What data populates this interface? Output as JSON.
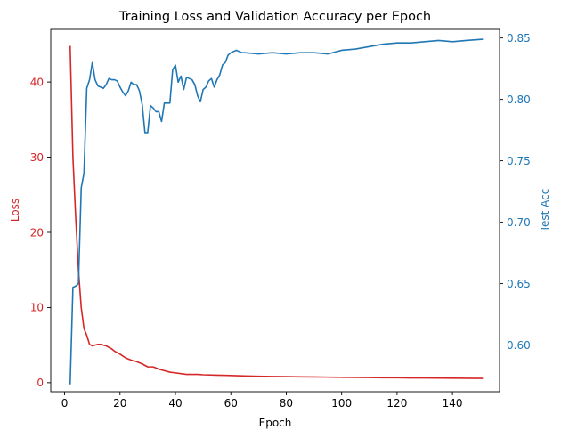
{
  "chart_data": {
    "type": "line",
    "title": "Training Loss and Validation Accuracy per Epoch",
    "xlabel": "Epoch",
    "xlim": [
      -5,
      157
    ],
    "xticks": [
      0,
      20,
      40,
      60,
      80,
      100,
      120,
      140
    ],
    "grid": false,
    "y_left": {
      "label": "Loss",
      "color": "#d62728",
      "ylim": [
        -1.2,
        47
      ],
      "ticks": [
        0,
        10,
        20,
        30,
        40
      ]
    },
    "y_right": {
      "label": "Test Acc",
      "color": "#1f77b4",
      "ylim": [
        0.562,
        0.857
      ],
      "ticks": [
        0.6,
        0.65,
        0.7,
        0.75,
        0.8,
        0.85
      ],
      "tick_labels": [
        "0.60",
        "0.65",
        "0.70",
        "0.75",
        "0.80",
        "0.85"
      ]
    },
    "series": [
      {
        "axis": "left",
        "color": "#d62728",
        "x": [
          2,
          3,
          4,
          5,
          6,
          7,
          8,
          9,
          10,
          11,
          12,
          13,
          14,
          15,
          16,
          17,
          18,
          19,
          20,
          22,
          24,
          26,
          28,
          30,
          32,
          34,
          36,
          38,
          40,
          42,
          44,
          46,
          48,
          50,
          55,
          60,
          65,
          70,
          75,
          80,
          85,
          90,
          95,
          100,
          105,
          110,
          115,
          120,
          125,
          130,
          135,
          140,
          145,
          151
        ],
        "values": [
          44.8,
          30,
          22,
          15,
          10,
          7.2,
          6.3,
          5.1,
          4.9,
          5,
          5.1,
          5.1,
          5,
          4.9,
          4.7,
          4.5,
          4.2,
          4,
          3.8,
          3.3,
          3,
          2.8,
          2.5,
          2.1,
          2.1,
          1.8,
          1.6,
          1.4,
          1.3,
          1.2,
          1.1,
          1.1,
          1.1,
          1.05,
          1.0,
          0.95,
          0.9,
          0.85,
          0.82,
          0.8,
          0.78,
          0.76,
          0.74,
          0.72,
          0.7,
          0.68,
          0.66,
          0.65,
          0.63,
          0.62,
          0.61,
          0.6,
          0.58,
          0.57
        ]
      },
      {
        "axis": "right",
        "color": "#1f77b4",
        "x": [
          2,
          3,
          4,
          5,
          6,
          7,
          8,
          9,
          10,
          11,
          12,
          13,
          14,
          15,
          16,
          17,
          18,
          19,
          20,
          21,
          22,
          23,
          24,
          25,
          26,
          27,
          28,
          29,
          30,
          31,
          32,
          33,
          34,
          35,
          36,
          37,
          38,
          39,
          40,
          41,
          42,
          43,
          44,
          45,
          46,
          47,
          48,
          49,
          50,
          51,
          52,
          53,
          54,
          55,
          56,
          57,
          58,
          59,
          60,
          61,
          62,
          63,
          64,
          65,
          70,
          75,
          80,
          85,
          90,
          95,
          100,
          105,
          110,
          115,
          120,
          125,
          130,
          135,
          140,
          145,
          151
        ],
        "values": [
          0.568,
          0.647,
          0.648,
          0.65,
          0.728,
          0.74,
          0.809,
          0.816,
          0.83,
          0.816,
          0.811,
          0.81,
          0.809,
          0.812,
          0.817,
          0.816,
          0.816,
          0.815,
          0.81,
          0.806,
          0.803,
          0.807,
          0.814,
          0.812,
          0.812,
          0.807,
          0.796,
          0.773,
          0.773,
          0.795,
          0.793,
          0.79,
          0.79,
          0.782,
          0.797,
          0.797,
          0.797,
          0.824,
          0.828,
          0.814,
          0.819,
          0.808,
          0.818,
          0.817,
          0.816,
          0.812,
          0.803,
          0.798,
          0.808,
          0.81,
          0.815,
          0.817,
          0.81,
          0.816,
          0.82,
          0.828,
          0.83,
          0.836,
          0.838,
          0.839,
          0.84,
          0.839,
          0.838,
          0.838,
          0.837,
          0.838,
          0.837,
          0.838,
          0.838,
          0.837,
          0.84,
          0.841,
          0.843,
          0.845,
          0.846,
          0.846,
          0.847,
          0.848,
          0.847,
          0.848,
          0.849
        ]
      }
    ]
  }
}
